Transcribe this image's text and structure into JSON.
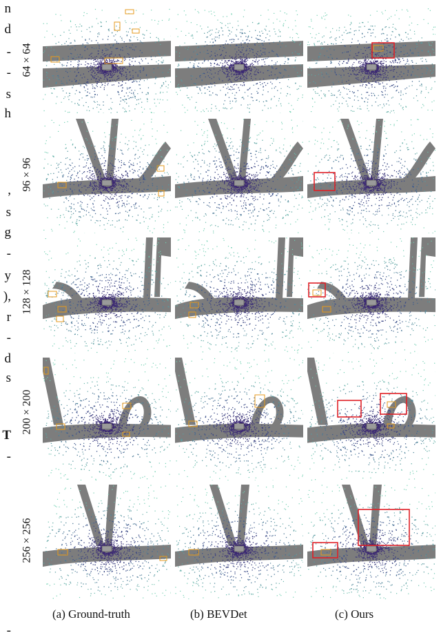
{
  "left_margin_text": [
    "n",
    "d",
    "-",
    "-",
    "s",
    "h",
    ",",
    "s",
    "g",
    "-",
    "y",
    "),",
    "r",
    "-",
    "d",
    "s",
    "T",
    "-",
    "-"
  ],
  "row_labels": [
    "64 × 64",
    "96 × 96",
    "128 × 128",
    "200 × 200",
    "256 × 256"
  ],
  "column_captions": [
    "(a)  Ground-truth",
    "(b)  BEVDet",
    "(c)  Ours"
  ],
  "colors": {
    "road": "#7d7d7d",
    "gt_box": "#e69a1c",
    "highlight_box": "#e01f26",
    "points_near": "#3b1e6e",
    "points_far": "#6fcfb0"
  }
}
